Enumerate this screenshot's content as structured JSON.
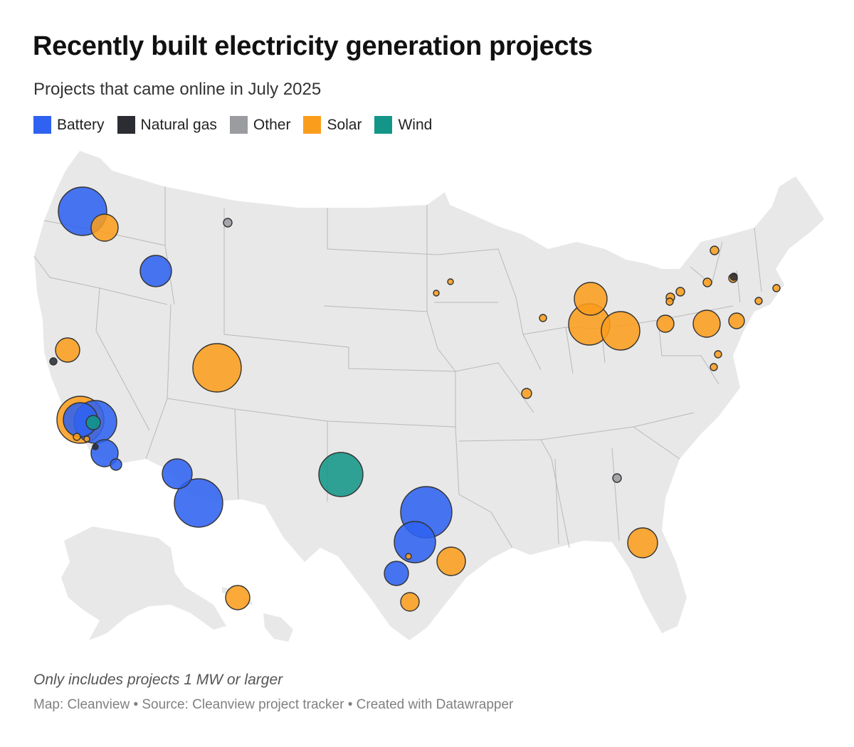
{
  "title": "Recently built electricity generation projects",
  "subtitle": "Projects that came online in July 2025",
  "legend": [
    {
      "label": "Battery",
      "color": "#2f62f0",
      "key": "battery"
    },
    {
      "label": "Natural gas",
      "color": "#2b2d33",
      "key": "gas"
    },
    {
      "label": "Other",
      "color": "#9a9ca0",
      "key": "other"
    },
    {
      "label": "Solar",
      "color": "#fb9d1c",
      "key": "solar"
    },
    {
      "label": "Wind",
      "color": "#139688",
      "key": "wind"
    }
  ],
  "notes": "Only includes projects 1 MW or larger",
  "credits": "Map: Cleanview • Source: Cleanview project tracker • Created with Datawrapper",
  "map": {
    "type": "proportional-symbol-map",
    "region": "United States",
    "projects": [
      {
        "type": "battery",
        "location": "Northern Oregon",
        "size": "large"
      },
      {
        "type": "solar",
        "location": "Northeast Oregon",
        "size": "medium"
      },
      {
        "type": "other",
        "location": "Montana",
        "size": "small"
      },
      {
        "type": "battery",
        "location": "Idaho",
        "size": "medium"
      },
      {
        "type": "solar",
        "location": "Northern California",
        "size": "medium"
      },
      {
        "type": "gas",
        "location": "San Francisco Bay Area",
        "size": "small"
      },
      {
        "type": "solar",
        "location": "Utah",
        "size": "large"
      },
      {
        "type": "solar",
        "location": "Southern California",
        "size": "large"
      },
      {
        "type": "battery",
        "location": "Southern California",
        "size": "large"
      },
      {
        "type": "battery",
        "location": "Southern California",
        "size": "large"
      },
      {
        "type": "wind",
        "location": "Southern California",
        "size": "small"
      },
      {
        "type": "solar",
        "location": "Southern California",
        "size": "small"
      },
      {
        "type": "solar",
        "location": "Southern California",
        "size": "small"
      },
      {
        "type": "gas",
        "location": "Southern California",
        "size": "small"
      },
      {
        "type": "battery",
        "location": "Southern California",
        "size": "medium"
      },
      {
        "type": "battery",
        "location": "San Diego area",
        "size": "small"
      },
      {
        "type": "battery",
        "location": "Western Arizona",
        "size": "medium"
      },
      {
        "type": "battery",
        "location": "Arizona",
        "size": "large"
      },
      {
        "type": "wind",
        "location": "Eastern New Mexico",
        "size": "large"
      },
      {
        "type": "battery",
        "location": "North Texas",
        "size": "large"
      },
      {
        "type": "battery",
        "location": "Central Texas",
        "size": "large"
      },
      {
        "type": "solar",
        "location": "Central Texas",
        "size": "small"
      },
      {
        "type": "solar",
        "location": "Southeast Texas",
        "size": "medium"
      },
      {
        "type": "battery",
        "location": "South Texas",
        "size": "medium"
      },
      {
        "type": "solar",
        "location": "South Texas",
        "size": "medium"
      },
      {
        "type": "solar",
        "location": "Hawaii",
        "size": "medium"
      },
      {
        "type": "solar",
        "location": "Minnesota",
        "size": "small"
      },
      {
        "type": "solar",
        "location": "Minnesota",
        "size": "small"
      },
      {
        "type": "solar",
        "location": "Illinois",
        "size": "small"
      },
      {
        "type": "solar",
        "location": "Southern Illinois",
        "size": "small"
      },
      {
        "type": "solar",
        "location": "Michigan",
        "size": "large"
      },
      {
        "type": "solar",
        "location": "Indiana",
        "size": "large"
      },
      {
        "type": "solar",
        "location": "Ohio",
        "size": "large"
      },
      {
        "type": "solar",
        "location": "Western Pennsylvania",
        "size": "medium"
      },
      {
        "type": "solar",
        "location": "Pennsylvania",
        "size": "large"
      },
      {
        "type": "solar",
        "location": "New Jersey",
        "size": "medium"
      },
      {
        "type": "solar",
        "location": "Northern New York",
        "size": "small"
      },
      {
        "type": "solar",
        "location": "Western New York",
        "size": "small"
      },
      {
        "type": "solar",
        "location": "Western New York",
        "size": "small"
      },
      {
        "type": "solar",
        "location": "Western New York",
        "size": "small"
      },
      {
        "type": "solar",
        "location": "Central New York",
        "size": "small"
      },
      {
        "type": "solar",
        "location": "Eastern New York",
        "size": "small"
      },
      {
        "type": "gas",
        "location": "Eastern New York",
        "size": "small"
      },
      {
        "type": "solar",
        "location": "Connecticut",
        "size": "small"
      },
      {
        "type": "solar",
        "location": "Massachusetts",
        "size": "small"
      },
      {
        "type": "solar",
        "location": "Maryland",
        "size": "small"
      },
      {
        "type": "solar",
        "location": "Maryland",
        "size": "small"
      },
      {
        "type": "other",
        "location": "Georgia",
        "size": "small"
      },
      {
        "type": "solar",
        "location": "Northern Florida",
        "size": "medium"
      }
    ]
  }
}
